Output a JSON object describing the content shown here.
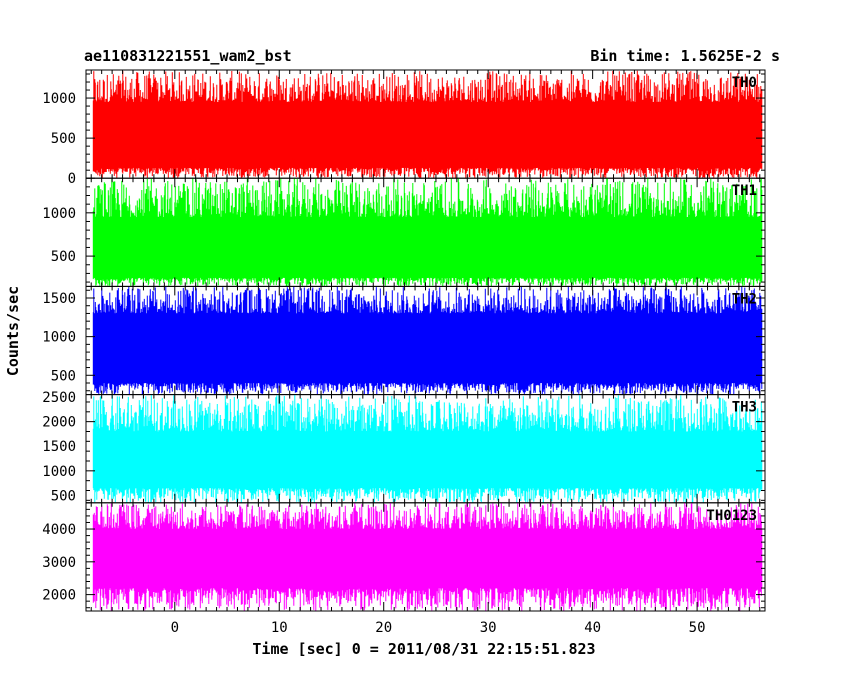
{
  "chart_data": {
    "type": "line",
    "title_left": "ae110831221551_wam2_bst",
    "title_right": "Bin time: 1.5625E-2 s",
    "xlabel": "Time [sec] 0 = 2011/08/31 22:15:51.823",
    "ylabel": "Counts/sec",
    "xlim": [
      -8.5,
      56.5
    ],
    "x_start": -7.8,
    "x_end": 56.2,
    "x_ticks": [
      0,
      10,
      20,
      30,
      40,
      50
    ],
    "grid": false,
    "panels": [
      {
        "name": "TH0",
        "color": "#ff0000",
        "ylim": [
          0,
          1350
        ],
        "y_ticks": [
          0,
          500,
          1000
        ],
        "band": [
          130,
          950
        ],
        "range": [
          0,
          1340
        ]
      },
      {
        "name": "TH1",
        "color": "#00ff00",
        "ylim": [
          150,
          1400
        ],
        "y_ticks": [
          500,
          1000
        ],
        "band": [
          250,
          950
        ],
        "range": [
          150,
          1400
        ]
      },
      {
        "name": "TH2",
        "color": "#0000ff",
        "ylim": [
          250,
          1650
        ],
        "y_ticks": [
          500,
          1000,
          1500
        ],
        "band": [
          400,
          1300
        ],
        "range": [
          250,
          1650
        ]
      },
      {
        "name": "TH3",
        "color": "#00ffff",
        "ylim": [
          350,
          2550
        ],
        "y_ticks": [
          500,
          1000,
          1500,
          2000,
          2500
        ],
        "band": [
          650,
          1800
        ],
        "range": [
          350,
          2550
        ]
      },
      {
        "name": "TH0123",
        "color": "#ff00ff",
        "ylim": [
          1500,
          4800
        ],
        "y_ticks": [
          2000,
          3000,
          4000
        ],
        "band": [
          2200,
          4000
        ],
        "range": [
          1500,
          4800
        ]
      }
    ]
  }
}
